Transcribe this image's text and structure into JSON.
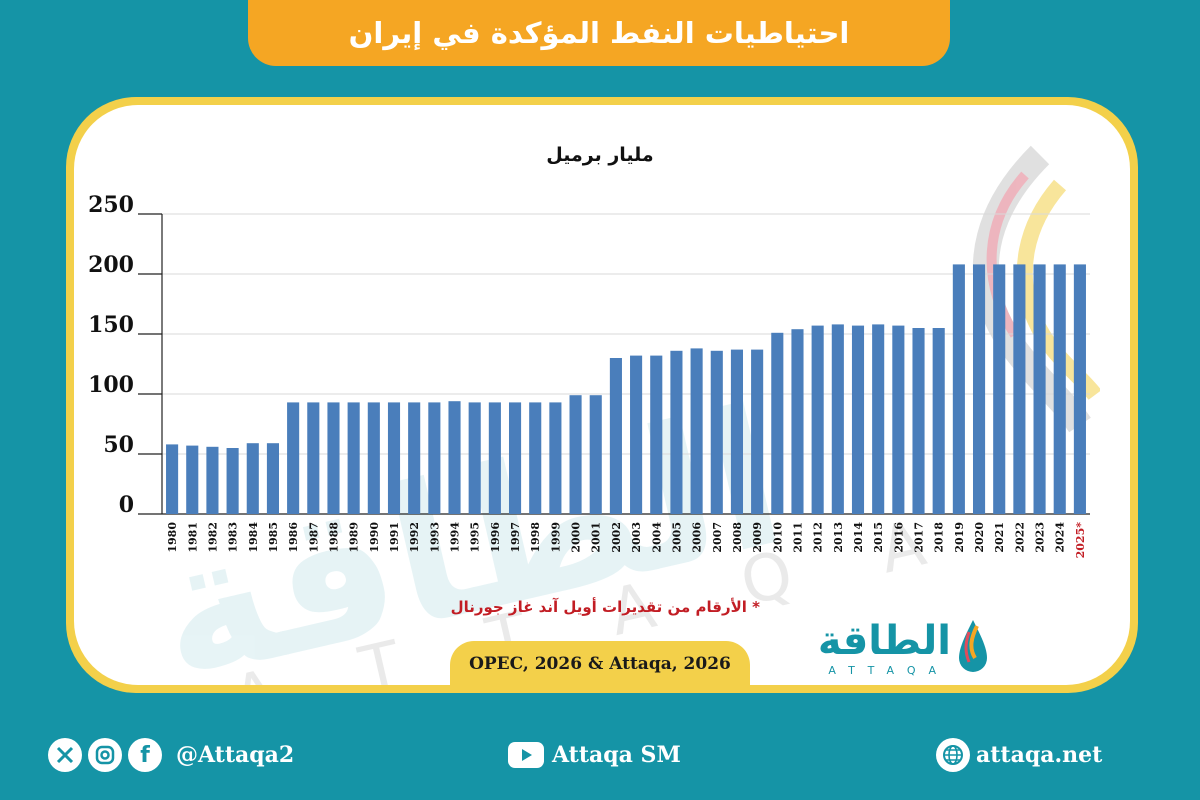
{
  "header": {
    "title": "احتياطيات النفط المؤكدة في إيران"
  },
  "chart_data": {
    "type": "bar",
    "unit_label": "مليار برميل",
    "title": "احتياطيات النفط المؤكدة في إيران",
    "categories": [
      "1980",
      "1981",
      "1982",
      "1983",
      "1984",
      "1985",
      "1986",
      "1987",
      "1988",
      "1989",
      "1990",
      "1991",
      "1992",
      "1993",
      "1994",
      "1995",
      "1996",
      "1997",
      "1998",
      "1999",
      "2000",
      "2001",
      "2002",
      "2003",
      "2004",
      "2005",
      "2006",
      "2007",
      "2008",
      "2009",
      "2010",
      "2011",
      "2012",
      "2013",
      "2014",
      "2015",
      "2016",
      "2017",
      "2018",
      "2019",
      "2020",
      "2021",
      "2022",
      "2023",
      "2024",
      "2025*"
    ],
    "values": [
      58,
      57,
      56,
      55,
      59,
      59,
      93,
      93,
      93,
      93,
      93,
      93,
      93,
      93,
      94,
      93,
      93,
      93,
      93,
      93,
      99,
      99,
      130,
      132,
      132,
      136,
      138,
      136,
      137,
      137,
      151,
      154,
      157,
      158,
      157,
      158,
      157,
      155,
      155,
      208,
      208,
      208,
      208,
      208,
      208,
      208
    ],
    "ylim": [
      0,
      250
    ],
    "yticks": [
      "0",
      "50",
      "100",
      "150",
      "200",
      "250"
    ],
    "grid": true,
    "bar_color": "#4a7ebb",
    "highlight_category": "2025*",
    "highlight_color": "#c21d24"
  },
  "note": "* الأرقام من تقديرات أويل آند غاز جورنال",
  "source": "OPEC, 2026 & Attaqa, 2026",
  "logo": {
    "arabic": "الطاقة",
    "latin": "ATTAQA"
  },
  "watermark": {
    "arabic": "الطاقة",
    "latin": "ATTAQA"
  },
  "footer": {
    "social_handle": "@Attaqa2",
    "youtube": "Attaqa SM",
    "website": "attaqa.net",
    "icons": [
      "x-icon",
      "instagram-icon",
      "facebook-icon",
      "youtube-icon",
      "globe-icon"
    ]
  },
  "colors": {
    "background": "#1594a6",
    "title_tab": "#f5a623",
    "card_border": "#f3d04a",
    "bars": "#4a7ebb",
    "note": "#c21d24"
  }
}
